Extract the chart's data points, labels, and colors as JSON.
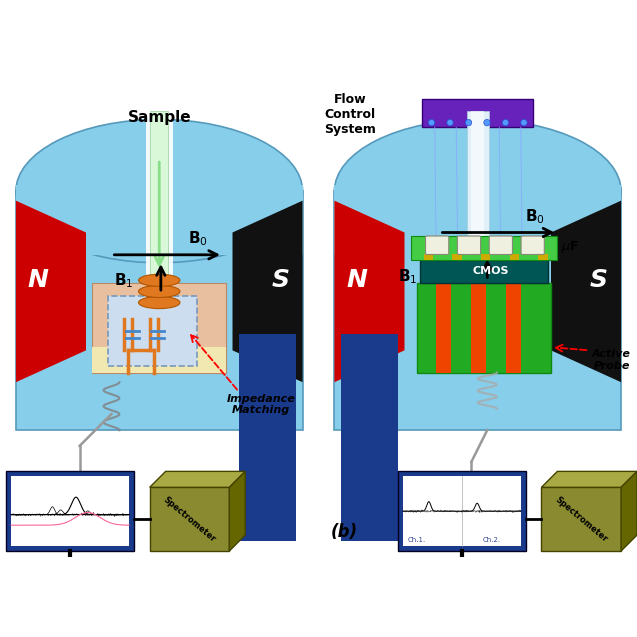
{
  "bg_color": "#ffffff",
  "magnet_body_color": "#87CEEB",
  "magnet_body_edge": "#5599bb",
  "magnet_N_color": "#cc0000",
  "magnet_S_color": "#111111",
  "blue_pillar_color": "#1a3a8c",
  "probe_body_color": "#e8c0a0",
  "coil_color": "#e07820",
  "coil_edge": "#b05500",
  "sample_tube_color": "#d8f8d8",
  "sample_tube_glow": "#ffffff",
  "circuit_bg": "#ccddf0",
  "circuit_edge": "#7799bb",
  "monitor_color": "#1a3a8c",
  "monitor_screen": "#ffffff",
  "spectrometer_color": "#8a8a30",
  "spectrometer_top": "#aaaa44",
  "spectrometer_right": "#666600",
  "flow_box_color": "#6622bb",
  "cmos_color": "#005555",
  "probe_green_light": "#44cc44",
  "probe_green_dark": "#22aa22",
  "probe_green_darkest": "#118811",
  "wire_color": "#88aaff",
  "orange_stripe": "#ee4400",
  "gold_pad": "#ccaa00",
  "cap_color": "#f0f0e0",
  "left_title": "Sample",
  "right_flow_label": "Flow\nControl\nSystem",
  "b_label": "(b)"
}
